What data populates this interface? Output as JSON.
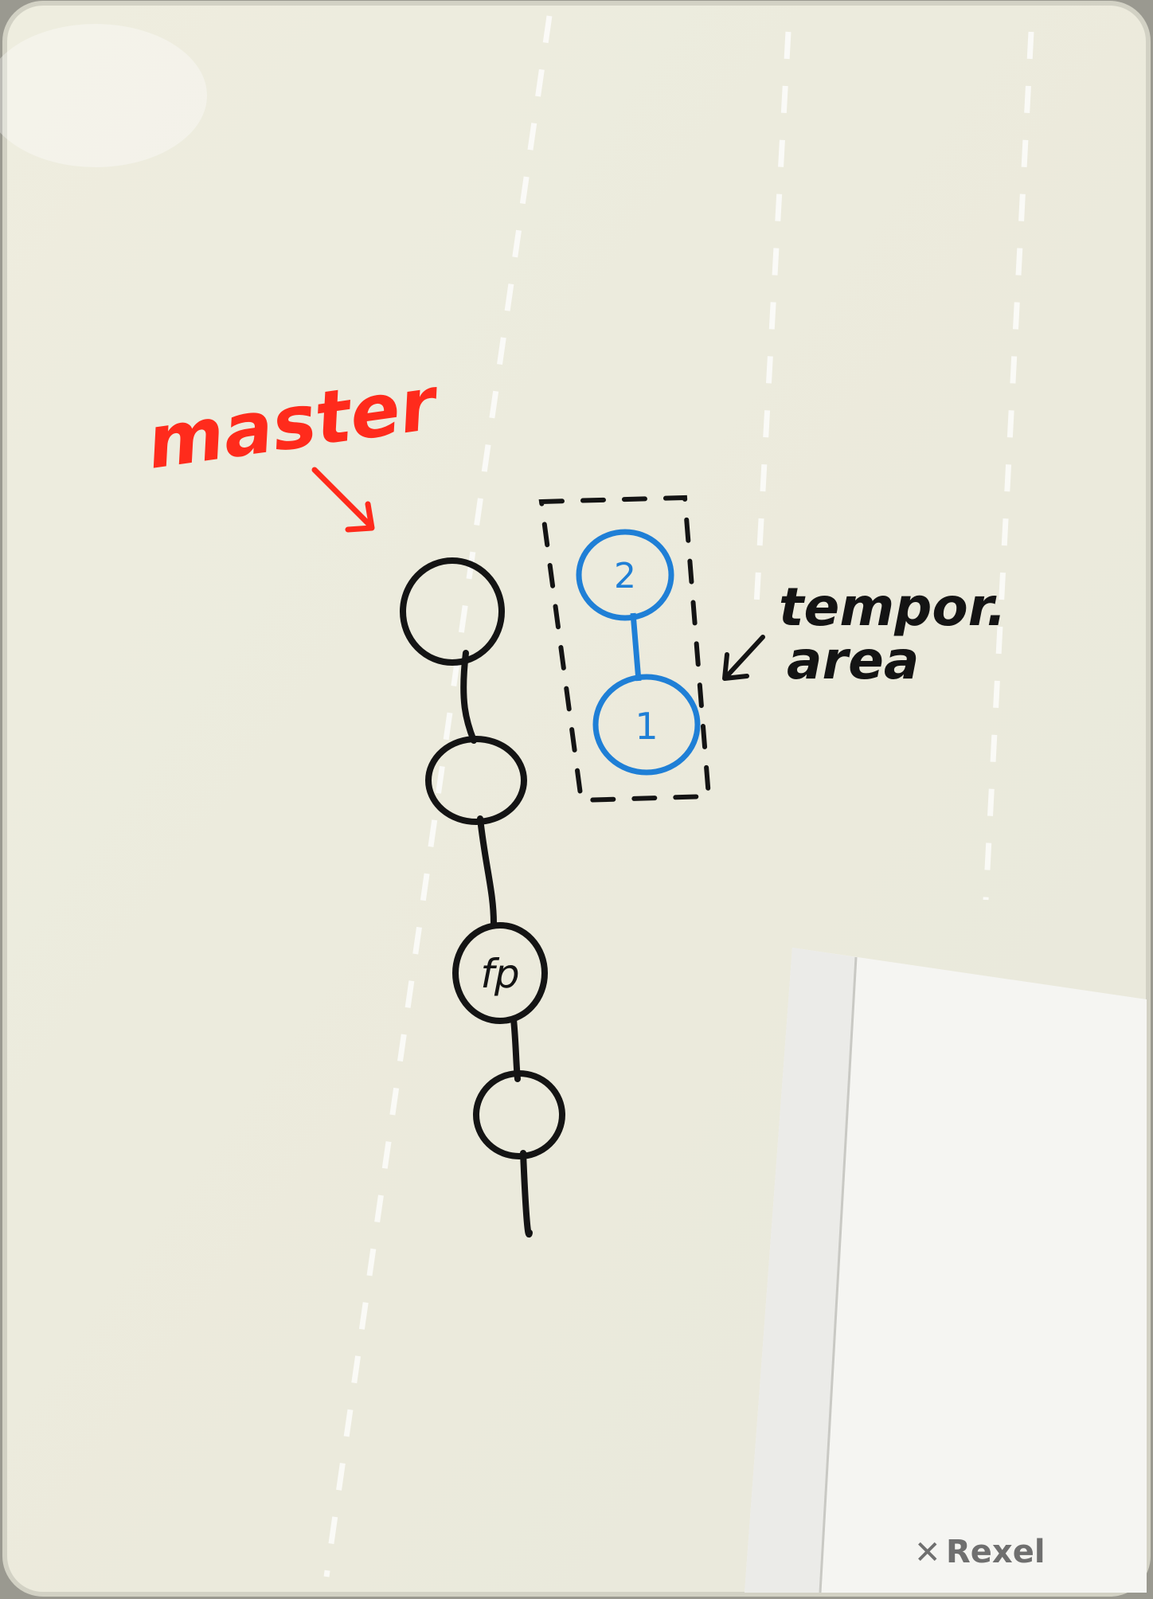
{
  "board": {
    "brand": "Rexel",
    "surface_color": "#ecebdd",
    "frame_color": "#d9d8cb"
  },
  "annotations": {
    "master_label": "master",
    "temporary_label_line1": "tempor.",
    "temporary_label_line2": "area"
  },
  "graph": {
    "main_chain_nodes": [
      "",
      "",
      "fp",
      ""
    ],
    "temporary_nodes": [
      "2",
      "1"
    ]
  },
  "colors": {
    "red_marker": "#ff2b1c",
    "blue_marker": "#1f7fd6",
    "black_marker": "#141414"
  }
}
